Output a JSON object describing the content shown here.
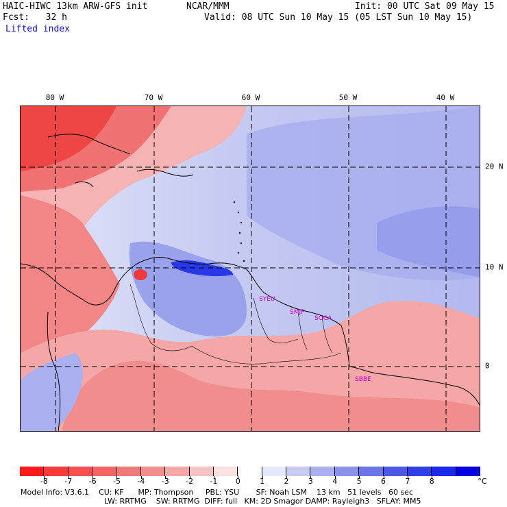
{
  "header": {
    "model_title": "HAIC-HIWC 13km ARW-GFS init",
    "org": "NCAR/MMM",
    "init": "Init: 00 UTC Sat 09 May 15",
    "fcst": "Fcst:   32 h",
    "valid": "Valid: 08 UTC Sun 10 May 15 (05 LST Sun 10 May 15)",
    "field": "Lifted index"
  },
  "map": {
    "lon_labels": [
      "80 W",
      "70 W",
      "60 W",
      "50 W",
      "40 W"
    ],
    "lat_labels": [
      "20 N",
      "10 N",
      "0"
    ],
    "stations": [
      "SYEU",
      "SMJP",
      "SOCA",
      "SBBE"
    ],
    "colors": {
      "strong_negative": "#f22a2a",
      "negative": "#f37a7a",
      "weak_negative": "#f7c0c0",
      "neutral": "#ffffff",
      "weak_positive": "#c9cdf3",
      "positive": "#9ea4ec",
      "strong_positive": "#2838e6"
    }
  },
  "colorbar": {
    "labels": [
      "-8",
      "-7",
      "-6",
      "-5",
      "-4",
      "-3",
      "-2",
      "-1",
      "0",
      "1",
      "2",
      "3",
      "4",
      "5",
      "6",
      "7",
      "8"
    ],
    "unit": "°C",
    "colors": [
      "#ff1a1a",
      "#ff3a3a",
      "#f85050",
      "#f46464",
      "#f07a7a",
      "#f29090",
      "#f4a8a8",
      "#f8c4c4",
      "#fde0e0",
      "#ffffff",
      "#e6e8fb",
      "#c8ccf4",
      "#aab0ef",
      "#8a92ea",
      "#6b75e7",
      "#4e5ae6",
      "#3040e6",
      "#1a28e8",
      "#0000e0"
    ]
  },
  "footer": {
    "line1": "Model Info: V3.6.1    CU: KF      MP: Thompson     PBL: YSU       SF: Noah LSM    13 km   51 levels   60 sec",
    "line2": "LW: RRTMG    SW: RRTMG  DIFF: full   KM: 2D Smagor DAMP: Rayleigh3   SFLAY: MM5"
  }
}
